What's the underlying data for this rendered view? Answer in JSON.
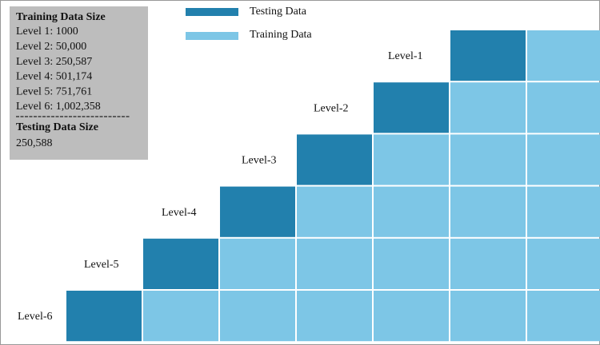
{
  "legend": [
    {
      "label": "Testing Data",
      "color": "#2280ad"
    },
    {
      "label": "Training Data",
      "color": "#7dc6e6"
    }
  ],
  "info": {
    "training_title": "Training Data Size",
    "training_lines": [
      "Level 1: 1000",
      "Level 2: 50,000",
      "Level 3: 250,587",
      "Level 4: 501,174",
      "Level 5: 751,761",
      "Level 6: 1,002,358"
    ],
    "testing_title": "Testing Data Size",
    "testing_value": "250,588"
  },
  "levels": [
    "Level-1",
    "Level-2",
    "Level-3",
    "Level-4",
    "Level-5",
    "Level-6"
  ]
}
